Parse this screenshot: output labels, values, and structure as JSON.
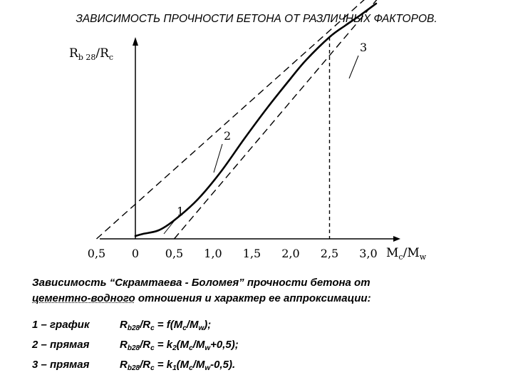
{
  "title": "ЗАВИСИМОСТЬ ПРОЧНОСТИ БЕТОНА ОТ РАЗЛИЧНЫХ ФАКТОРОВ.",
  "chart_data": {
    "type": "line",
    "ylabel": {
      "main": "R",
      "sub1": "b 28",
      "mid": "/R",
      "sub2": "c"
    },
    "xlabel": {
      "main": "M",
      "sub1": "c",
      "mid": "/M",
      "sub2": "w"
    },
    "xlim": [
      -0.5,
      3.3
    ],
    "ylim": [
      0,
      3.6
    ],
    "grid": false,
    "x_tick_labels": [
      {
        "x": -0.5,
        "label": "0,5"
      },
      {
        "x": 0,
        "label": "0"
      },
      {
        "x": 0.5,
        "label": "0,5"
      },
      {
        "x": 1.0,
        "label": "1,0"
      },
      {
        "x": 1.5,
        "label": "1,5"
      },
      {
        "x": 2.0,
        "label": "2,0"
      },
      {
        "x": 2.5,
        "label": "2,5"
      },
      {
        "x": 3.0,
        "label": "3,0"
      }
    ],
    "series": [
      {
        "label": "1",
        "style": "solid",
        "x": [
          0,
          0.1,
          0.3,
          0.5,
          0.8,
          1.1,
          1.4,
          1.7,
          2.0,
          2.2,
          2.5,
          2.7,
          2.9,
          3.1
        ],
        "y": [
          0.04,
          0.07,
          0.12,
          0.26,
          0.55,
          0.94,
          1.4,
          1.84,
          2.25,
          2.51,
          2.83,
          2.99,
          3.14,
          3.3
        ]
      },
      {
        "label": "2",
        "style": "dashed",
        "x": [
          -0.5,
          3.2
        ],
        "y": [
          0,
          3.6
        ]
      },
      {
        "label": "3",
        "style": "dashed",
        "x": [
          0.5,
          3.3
        ],
        "y": [
          0,
          3.6
        ]
      }
    ],
    "marker_x": 2.5
  },
  "caption": {
    "line1": "Зависимость “Скрамтаева - Боломея” прочности бетона от",
    "line2_under": "цементно-водного",
    "line2_rest": " отношения и характер ее аппроксимации:"
  },
  "legend": [
    {
      "label": "1 – график",
      "r": "R",
      "rs": "b28",
      "mid": "/R",
      "cs": "c",
      "eq": " = f(M",
      "ms": "c",
      "m2": "/M",
      "ws": "w",
      "end": ");"
    },
    {
      "label": "2 – прямая",
      "r": "R",
      "rs": "b28",
      "mid": "/R",
      "cs": "c",
      "eq": " = k",
      "ks": "2",
      "k2": "(M",
      "ms": "c",
      "m2": "/M",
      "ws": "w",
      "end": "+0,5);"
    },
    {
      "label": "3 – прямая",
      "r": "R",
      "rs": "b28",
      "mid": "/R",
      "cs": "c",
      "eq": " = k",
      "ks": "1",
      "k2": "(M",
      "ms": "c",
      "m2": "/M",
      "ws": "w",
      "end": "-0,5)."
    }
  ]
}
